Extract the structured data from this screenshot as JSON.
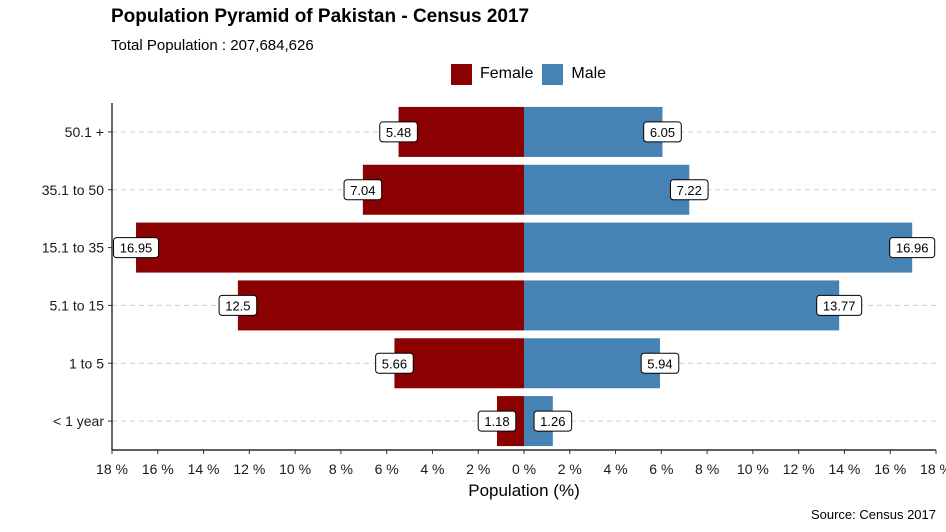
{
  "chart_data": {
    "type": "bar",
    "orientation": "horizontal-pyramid",
    "title": "Population Pyramid of Pakistan - Census 2017",
    "subtitle": "Total Population : 207,684,626",
    "caption": "Source: Census 2017",
    "xlabel": "Population (%)",
    "ylabel": "",
    "categories": [
      "< 1 year",
      "1 to 5",
      "5.1 to 15",
      "15.1 to 35",
      "35.1 to 50",
      "50.1 +"
    ],
    "series": [
      {
        "name": "Female",
        "color": "#8B0000",
        "side": "left",
        "values": [
          1.18,
          5.66,
          12.5,
          16.95,
          7.04,
          5.48
        ],
        "labels": [
          "1.18",
          "5.66",
          "12.5",
          "16.95",
          "7.04",
          "5.48"
        ]
      },
      {
        "name": "Male",
        "color": "#4682B4",
        "side": "right",
        "values": [
          1.26,
          5.94,
          13.77,
          16.96,
          7.22,
          6.05
        ],
        "labels": [
          "1.26",
          "5.94",
          "13.77",
          "16.96",
          "7.22",
          "6.05"
        ]
      }
    ],
    "xlim": [
      -18,
      18
    ],
    "xticks": [
      -18,
      -16,
      -14,
      -12,
      -10,
      -8,
      -6,
      -4,
      -2,
      0,
      2,
      4,
      6,
      8,
      10,
      12,
      14,
      16,
      18
    ],
    "xtick_labels": [
      "18 %",
      "16 %",
      "14 %",
      "12 %",
      "10 %",
      "8 %",
      "6 %",
      "4 %",
      "2 %",
      "0 %",
      "2 %",
      "4 %",
      "6 %",
      "8 %",
      "10 %",
      "12 %",
      "14 %",
      "16 %",
      "18 %"
    ],
    "legend_position": "top",
    "grid": "horizontal-dashed"
  }
}
